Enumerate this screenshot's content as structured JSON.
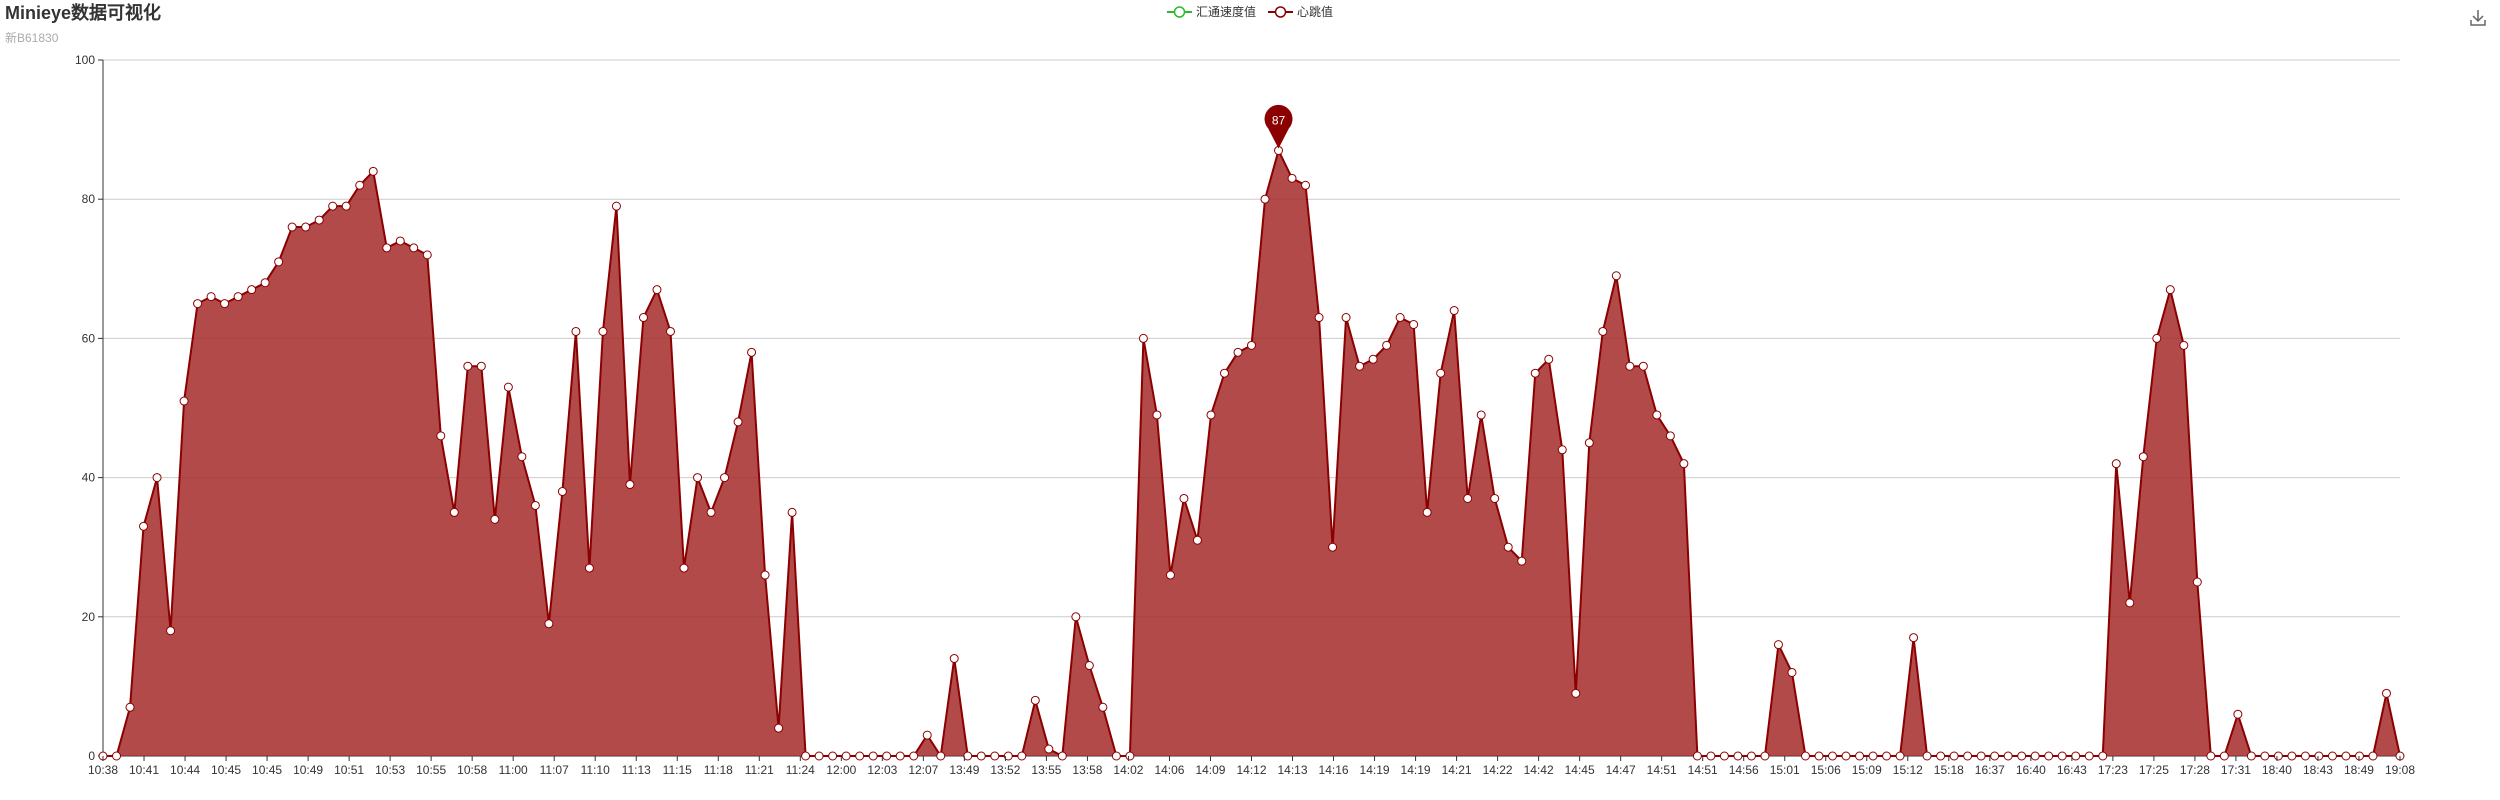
{
  "title": "Minieye数据可视化",
  "subtitle": "新B61830",
  "legend": [
    {
      "name": "汇通速度值",
      "color": "#2eb82e"
    },
    {
      "name": "心跳值",
      "color": "#8b0000"
    }
  ],
  "toolbar": {
    "download_icon": "download-icon"
  },
  "colors": {
    "area_fill": "#a52a2a",
    "line": "#8b0000",
    "grid": "#cccccc",
    "axis": "#333333",
    "pin": "#8b0000"
  },
  "chart_data": {
    "type": "area",
    "ylim": [
      0,
      100
    ],
    "yticks": [
      0,
      20,
      40,
      60,
      80,
      100
    ],
    "xlabels": [
      "10:38",
      "10:41",
      "10:44",
      "10:45",
      "10:45",
      "10:49",
      "10:51",
      "10:53",
      "10:55",
      "10:58",
      "11:00",
      "11:07",
      "11:10",
      "11:13",
      "11:15",
      "11:18",
      "11:21",
      "11:24",
      "12:00",
      "12:03",
      "12:07",
      "13:49",
      "13:52",
      "13:55",
      "13:58",
      "14:02",
      "14:06",
      "14:09",
      "14:12",
      "14:13",
      "14:16",
      "14:19",
      "14:19",
      "14:21",
      "14:22",
      "14:42",
      "14:45",
      "14:47",
      "14:51",
      "14:51",
      "14:56",
      "15:01",
      "15:06",
      "15:09",
      "15:12",
      "15:18",
      "16:37",
      "16:40",
      "16:43",
      "17:23",
      "17:25",
      "17:28",
      "17:31",
      "18:40",
      "18:43",
      "18:49",
      "19:08"
    ],
    "series": [
      {
        "name": "心跳值",
        "values": [
          0,
          0,
          7,
          33,
          40,
          18,
          51,
          65,
          66,
          65,
          66,
          67,
          68,
          71,
          76,
          76,
          77,
          79,
          79,
          82,
          84,
          73,
          74,
          73,
          72,
          46,
          35,
          56,
          56,
          34,
          53,
          43,
          36,
          19,
          38,
          61,
          27,
          61,
          79,
          39,
          63,
          67,
          61,
          27,
          40,
          35,
          40,
          48,
          58,
          26,
          4,
          35,
          0,
          0,
          0,
          0,
          0,
          0,
          0,
          0,
          0,
          3,
          0,
          14,
          0,
          0,
          0,
          0,
          0,
          8,
          1,
          0,
          20,
          13,
          7,
          0,
          0,
          60,
          49,
          26,
          37,
          31,
          49,
          55,
          58,
          59,
          80,
          87,
          83,
          82,
          63,
          30,
          63,
          56,
          57,
          59,
          63,
          62,
          35,
          55,
          64,
          37,
          49,
          37,
          30,
          28,
          55,
          57,
          44,
          9,
          45,
          61,
          69,
          56,
          56,
          49,
          46,
          42,
          0,
          0,
          0,
          0,
          0,
          0,
          16,
          12,
          0,
          0,
          0,
          0,
          0,
          0,
          0,
          0,
          17,
          0,
          0,
          0,
          0,
          0,
          0,
          0,
          0,
          0,
          0,
          0,
          0,
          0,
          0,
          42,
          22,
          43,
          60,
          67,
          59,
          25,
          0,
          0,
          6,
          0,
          0,
          0,
          0,
          0,
          0,
          0,
          0,
          0,
          0,
          9,
          0
        ]
      }
    ],
    "markpoint": {
      "label": "87"
    }
  }
}
